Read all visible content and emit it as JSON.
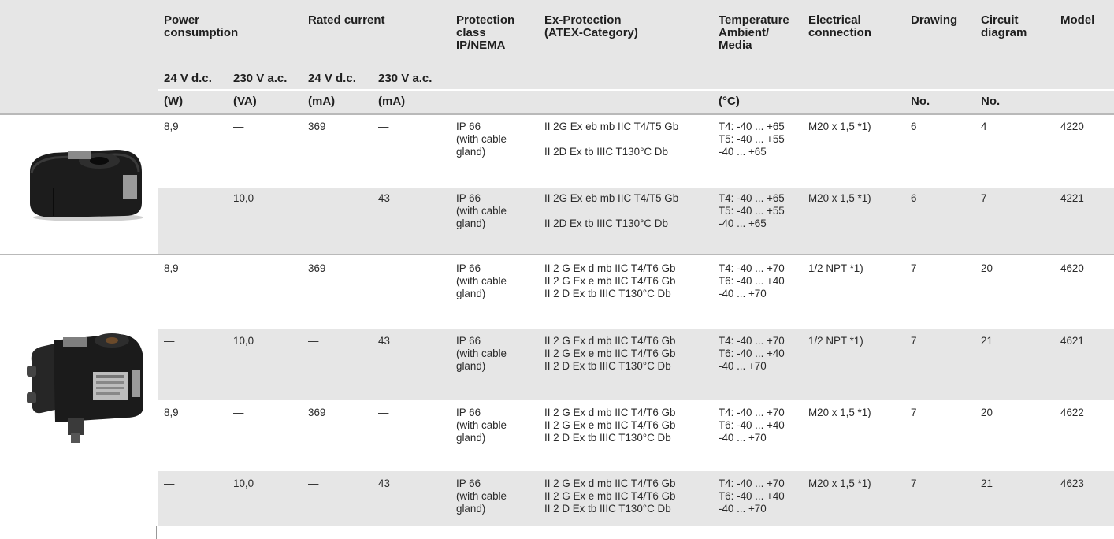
{
  "header": {
    "power": "Power consumption",
    "rated": "Rated current",
    "protection": "Protection class IP/NEMA",
    "exprot": "Ex-Protection (ATEX-Category)",
    "temp": "Temperature Ambient/ Media",
    "elec": "Electrical connection",
    "drawing": "Drawing",
    "circuit": "Circuit diagram",
    "model": "Model",
    "sub_24vdc_w": "24 V d.c.",
    "sub_230vac_va": "230 V a.c.",
    "sub_24vdc_ma": "24 V d.c.",
    "sub_230vac_ma": "230 V a.c.",
    "unit_w": "(W)",
    "unit_va": "(VA)",
    "unit_ma1": "(mA)",
    "unit_ma2": "(mA)",
    "unit_c": "(°C)",
    "unit_drawing": "No.",
    "unit_circuit": "No."
  },
  "rows": [
    {
      "pw": "8,9",
      "pva": "—",
      "i24": "369",
      "i230": "—",
      "prot": [
        "IP 66",
        "(with cable",
        "gland)"
      ],
      "ex": [
        "II 2G Ex eb mb IIC T4/T5 Gb",
        "",
        "II 2D Ex tb IIIC T130°C Db"
      ],
      "temp": [
        "T4: -40 ... +65",
        "T5: -40 ... +55",
        "-40 ... +65"
      ],
      "elec": "M20 x 1,5 *1)",
      "drawing": "6",
      "circuit": "4",
      "model": "4220"
    },
    {
      "pw": "—",
      "pva": "10,0",
      "i24": "—",
      "i230": "43",
      "prot": [
        "IP 66",
        "(with cable",
        "gland)"
      ],
      "ex": [
        "II 2G Ex eb mb IIC T4/T5 Gb",
        "",
        "II 2D Ex tb IIIC T130°C Db"
      ],
      "temp": [
        "T4: -40 ... +65",
        "T5: -40 ... +55",
        "-40 ... +65"
      ],
      "elec": "M20 x 1,5 *1)",
      "drawing": "6",
      "circuit": "7",
      "model": "4221"
    },
    {
      "pw": "8,9",
      "pva": "—",
      "i24": "369",
      "i230": "—",
      "prot": [
        "IP 66",
        "(with cable",
        "gland)"
      ],
      "ex": [
        "II 2 G Ex d mb IIC T4/T6 Gb",
        "II 2 G Ex e mb IIC T4/T6 Gb",
        "II 2 D Ex tb IIIC T130°C Db"
      ],
      "temp": [
        "T4: -40 ... +70",
        "T6: -40 ... +40",
        "-40 ... +70"
      ],
      "elec": "1/2 NPT *1)",
      "drawing": "7",
      "circuit": "20",
      "model": "4620"
    },
    {
      "pw": "—",
      "pva": "10,0",
      "i24": "—",
      "i230": "43",
      "prot": [
        "IP 66",
        "(with cable",
        "gland)"
      ],
      "ex": [
        "II 2 G Ex d mb IIC T4/T6 Gb",
        "II 2 G Ex e mb IIC T4/T6 Gb",
        "II 2 D Ex tb IIIC T130°C Db"
      ],
      "temp": [
        "T4: -40 ... +70",
        "T6: -40 ... +40",
        "-40 ... +70"
      ],
      "elec": "1/2 NPT *1)",
      "drawing": "7",
      "circuit": "21",
      "model": "4621"
    },
    {
      "pw": "8,9",
      "pva": "—",
      "i24": "369",
      "i230": "—",
      "prot": [
        "IP 66",
        "(with cable",
        "gland)"
      ],
      "ex": [
        "II 2 G Ex d mb IIC T4/T6 Gb",
        "II 2 G Ex e mb IIC T4/T6 Gb",
        "II 2 D Ex tb IIIC T130°C Db"
      ],
      "temp": [
        "T4: -40 ... +70",
        "T6: -40 ... +40",
        "-40 ... +70"
      ],
      "elec": "M20 x 1,5 *1)",
      "drawing": "7",
      "circuit": "20",
      "model": "4622"
    },
    {
      "pw": "—",
      "pva": "10,0",
      "i24": "—",
      "i230": "43",
      "prot": [
        "IP 66",
        "(with cable",
        "gland)"
      ],
      "ex": [
        "II 2 G Ex d mb IIC T4/T6 Gb",
        "II 2 G Ex e mb IIC T4/T6 Gb",
        "II 2 D Ex tb IIIC T130°C Db"
      ],
      "temp": [
        "T4: -40 ... +70",
        "T6: -40 ... +40",
        "-40 ... +70"
      ],
      "elec": "M20 x 1,5 *1)",
      "drawing": "7",
      "circuit": "21",
      "model": "4623"
    }
  ]
}
